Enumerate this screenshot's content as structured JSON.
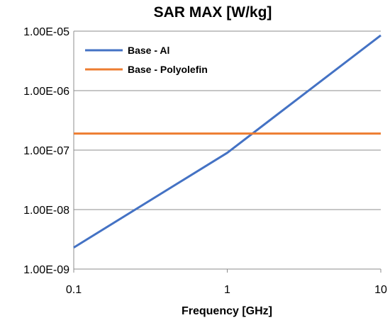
{
  "chart_data": {
    "type": "line",
    "title": "SAR MAX [W/kg]",
    "xlabel": "Frequency [GHz]",
    "ylabel": "",
    "x_scale": "log",
    "y_scale": "log",
    "xlim": [
      0.1,
      10
    ],
    "ylim": [
      1e-09,
      1e-05
    ],
    "x_ticks": [
      0.1,
      1,
      10
    ],
    "x_tick_labels": [
      "0.1",
      "1",
      "10"
    ],
    "y_ticks": [
      1e-09,
      1e-08,
      1e-07,
      1e-06,
      1e-05
    ],
    "y_tick_labels": [
      "1.00E-09",
      "1.00E-08",
      "1.00E-07",
      "1.00E-06",
      "1.00E-05"
    ],
    "grid": "horizontal",
    "legend_position": "top-left",
    "series": [
      {
        "name": "Base - Al",
        "color": "#4472C4",
        "x": [
          0.1,
          1,
          10
        ],
        "y": [
          2.3e-09,
          9e-08,
          8.5e-06
        ]
      },
      {
        "name": "Base - Polyolefin",
        "color": "#ED7D31",
        "x": [
          0.1,
          10
        ],
        "y": [
          1.9e-07,
          1.9e-07
        ]
      }
    ]
  }
}
